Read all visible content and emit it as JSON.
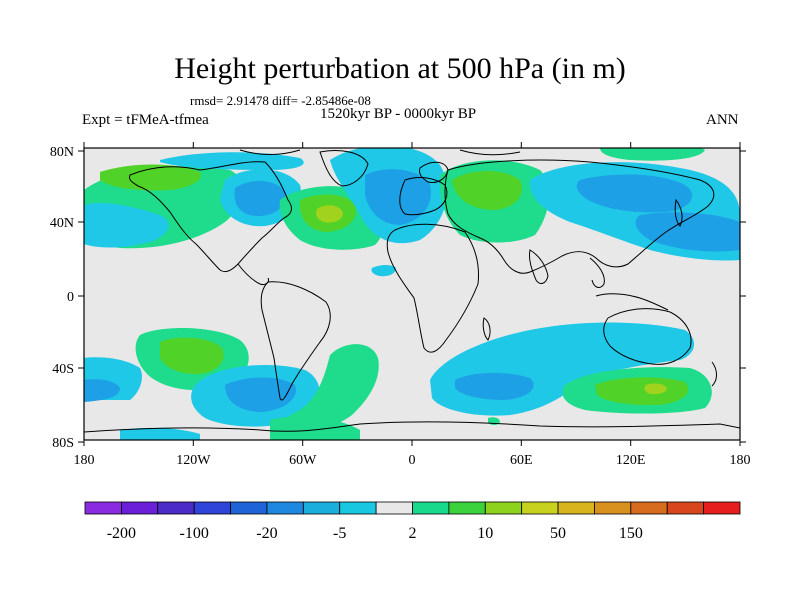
{
  "title": "Height perturbation at 500 hPa (in m)",
  "stats": "rmsd= 2.91478 diff= -2.85486e-08",
  "period": "1520kyr BP - 0000kyr BP",
  "experiment": "Expt = tFMeA-tfmea",
  "season": "ANN",
  "lat_ticks": [
    "80N",
    "40N",
    "0",
    "40S",
    "80S"
  ],
  "lon_ticks": [
    "180",
    "120W",
    "60W",
    "0",
    "60E",
    "120E",
    "180"
  ],
  "colorbar": {
    "labels": [
      "-200",
      "-100",
      "-20",
      "-5",
      "2",
      "10",
      "50",
      "150"
    ],
    "colors": [
      "#8a2be2",
      "#6a1fd8",
      "#4b2cc8",
      "#2f44d8",
      "#1f63d8",
      "#1e88e0",
      "#19aedc",
      "#19c8e0",
      "#e8e8e8",
      "#19d98c",
      "#3cd23c",
      "#8fd21e",
      "#c8d21e",
      "#d8b41e",
      "#d8901e",
      "#d86c1e",
      "#d8461e",
      "#e61e1e"
    ]
  },
  "anomaly_colors": {
    "neutral": "#e8e8e8",
    "cyan": "#1ec8e6",
    "blue": "#1ea0e6",
    "dblue": "#1e78dc",
    "green": "#1edc8c",
    "lgreen": "#50d228",
    "ygreen": "#a0d21e"
  }
}
